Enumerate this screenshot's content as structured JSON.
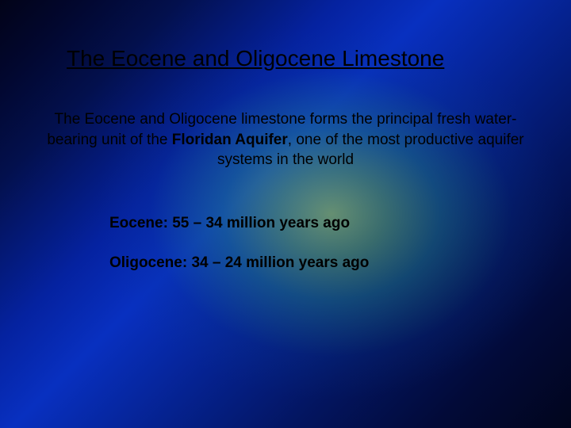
{
  "background": {
    "gradient_stops_linear": [
      "#020318",
      "#02072e",
      "#03104d",
      "#0522a0",
      "#0830c0",
      "#052290",
      "#031560",
      "#020a38",
      "#01051c"
    ],
    "radial_center": "58% 50%",
    "radial_colors": [
      "rgba(180,230,80,0.55)",
      "rgba(120,200,80,0.45)",
      "rgba(40,140,120,0.40)",
      "rgba(10,60,140,0.15)",
      "rgba(0,0,0,0)"
    ]
  },
  "text_color": "#000000",
  "title": {
    "text": "The Eocene and Oligocene Limestone",
    "fontsize": 28,
    "underline": true
  },
  "body": {
    "pre": "The Eocene and Oligocene limestone forms the principal fresh water-bearing unit of the ",
    "bold_term": "Floridan Aquifer",
    "post": ", one of the most productive aquifer systems in the world",
    "fontsize": 19
  },
  "epochs": {
    "eocene": "Eocene:  55 – 34 million years ago",
    "oligocene": "Oligocene: 34 – 24 million years ago",
    "fontsize": 19,
    "fontweight": "bold"
  }
}
